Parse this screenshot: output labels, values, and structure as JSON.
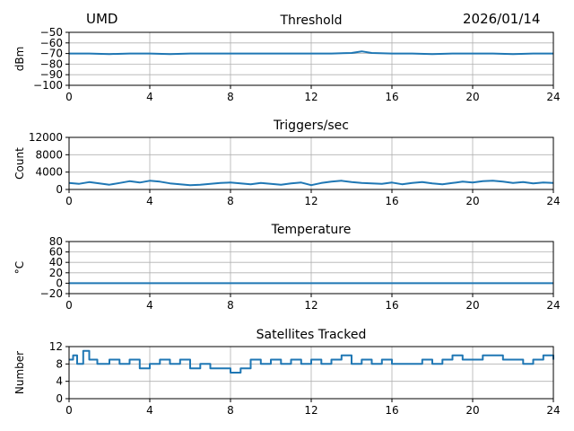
{
  "header": {
    "station": "UMD",
    "date": "2026/01/14"
  },
  "style": {
    "line_color": "#1f77b4",
    "grid_color": "#b0b0b0",
    "axis_color": "#000000"
  },
  "chart_data": [
    {
      "type": "line",
      "title": "Threshold",
      "xlabel": "",
      "ylabel": "dBm",
      "xlim": [
        0,
        24
      ],
      "ylim": [
        -100,
        -50
      ],
      "x_ticks": [
        0,
        4,
        8,
        12,
        16,
        20,
        24
      ],
      "y_ticks": [
        -100,
        -90,
        -80,
        -70,
        -60,
        -50
      ],
      "grid": true,
      "series": [
        {
          "x": [
            0,
            1,
            2,
            3,
            4,
            5,
            6,
            7,
            8,
            9,
            10,
            11,
            12,
            13,
            14,
            14.5,
            15,
            16,
            17,
            18,
            19,
            20,
            21,
            22,
            23,
            24
          ],
          "values": [
            -70,
            -70,
            -70.5,
            -70,
            -70,
            -70.5,
            -70,
            -70,
            -70,
            -70,
            -70,
            -70,
            -70,
            -70,
            -69.5,
            -68,
            -69.5,
            -70,
            -70,
            -70.5,
            -70,
            -70,
            -70,
            -70.5,
            -70,
            -70
          ]
        }
      ]
    },
    {
      "type": "line",
      "title": "Triggers/sec",
      "xlabel": "",
      "ylabel": "Count",
      "xlim": [
        0,
        24
      ],
      "ylim": [
        0,
        12000
      ],
      "x_ticks": [
        0,
        4,
        8,
        12,
        16,
        20,
        24
      ],
      "y_ticks": [
        0,
        4000,
        8000,
        12000
      ],
      "grid": true,
      "series": [
        {
          "x": [
            0,
            0.5,
            1,
            1.5,
            2,
            2.5,
            3,
            3.5,
            4,
            4.5,
            5,
            5.5,
            6,
            6.5,
            7,
            7.5,
            8,
            8.5,
            9,
            9.5,
            10,
            10.5,
            11,
            11.5,
            12,
            12.5,
            13,
            13.5,
            14,
            14.5,
            15,
            15.5,
            16,
            16.5,
            17,
            17.5,
            18,
            18.5,
            19,
            19.5,
            20,
            20.5,
            21,
            21.5,
            22,
            22.5,
            23,
            23.5,
            24
          ],
          "values": [
            1500,
            1300,
            1700,
            1400,
            1100,
            1500,
            1900,
            1600,
            2000,
            1800,
            1400,
            1200,
            1000,
            1100,
            1300,
            1500,
            1600,
            1400,
            1200,
            1500,
            1300,
            1100,
            1400,
            1600,
            1000,
            1500,
            1800,
            2000,
            1700,
            1500,
            1400,
            1300,
            1600,
            1200,
            1500,
            1700,
            1400,
            1200,
            1500,
            1800,
            1600,
            1900,
            2000,
            1800,
            1500,
            1700,
            1400,
            1600,
            1500
          ]
        }
      ]
    },
    {
      "type": "line",
      "title": "Temperature",
      "xlabel": "",
      "ylabel": "°C",
      "xlim": [
        0,
        24
      ],
      "ylim": [
        -20,
        80
      ],
      "x_ticks": [
        0,
        4,
        8,
        12,
        16,
        20,
        24
      ],
      "y_ticks": [
        -20,
        0,
        20,
        40,
        60,
        80
      ],
      "grid": true,
      "series": [
        {
          "x": [
            0,
            24
          ],
          "values": [
            0,
            0
          ]
        }
      ]
    },
    {
      "type": "line",
      "title": "Satellites Tracked",
      "xlabel": "",
      "ylabel": "Number",
      "xlim": [
        0,
        24
      ],
      "ylim": [
        0,
        12
      ],
      "x_ticks": [
        0,
        4,
        8,
        12,
        16,
        20,
        24
      ],
      "y_ticks": [
        0,
        4,
        8,
        12
      ],
      "grid": true,
      "series": [
        {
          "step": true,
          "x": [
            0,
            0.2,
            0.4,
            0.7,
            1.0,
            1.4,
            2.0,
            2.5,
            3.0,
            3.5,
            4.0,
            4.5,
            5.0,
            5.5,
            6.0,
            6.5,
            7.0,
            7.5,
            8.0,
            8.5,
            9.0,
            9.5,
            10.0,
            10.5,
            11.0,
            11.5,
            12.0,
            12.5,
            13.0,
            13.5,
            14.0,
            14.5,
            15.0,
            15.5,
            16.0,
            16.5,
            17.0,
            17.5,
            18.0,
            18.5,
            19.0,
            19.5,
            20.0,
            20.5,
            21.0,
            21.5,
            22.0,
            22.5,
            23.0,
            23.5,
            24.0
          ],
          "values": [
            9,
            10,
            8,
            11,
            9,
            8,
            9,
            8,
            9,
            7,
            8,
            9,
            8,
            9,
            7,
            8,
            7,
            7,
            6,
            7,
            9,
            8,
            9,
            8,
            9,
            8,
            9,
            8,
            9,
            10,
            8,
            9,
            8,
            9,
            8,
            8,
            8,
            9,
            8,
            9,
            10,
            9,
            9,
            10,
            10,
            9,
            9,
            8,
            9,
            10,
            9
          ]
        }
      ]
    }
  ]
}
